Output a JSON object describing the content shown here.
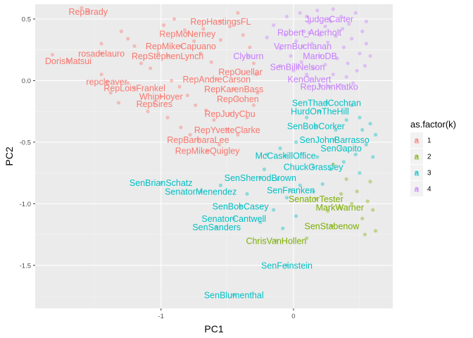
{
  "chart_data": {
    "type": "scatter",
    "xlabel": "PC1",
    "ylabel": "PC2",
    "xlim": [
      -1.95,
      0.75
    ],
    "ylim": [
      -1.85,
      0.62
    ],
    "x_ticks": [
      -1,
      0
    ],
    "y_ticks": [
      -1.5,
      -1.0,
      -0.5,
      0.0,
      0.5
    ],
    "x_tick_labels": [
      "-1",
      "0"
    ],
    "y_tick_labels": [
      "-1.5",
      "-1.0",
      "-0.5",
      "0.0",
      "0.5"
    ],
    "grid": true,
    "legend": {
      "title": "as.factor(k)",
      "placement": "right",
      "entries": [
        {
          "key": "1",
          "letter": "a",
          "color": "#F8766D"
        },
        {
          "key": "2",
          "letter": "a",
          "color": "#7CAE00"
        },
        {
          "key": "3",
          "letter": "a",
          "color": "#00BFC4"
        },
        {
          "key": "4",
          "letter": "a",
          "color": "#C77CFF"
        }
      ]
    },
    "colors": {
      "1": "#F8766D",
      "2": "#7CAE00",
      "3": "#00BFC4",
      "4": "#C77CFF"
    },
    "labeled_points": [
      {
        "label": "RepBrady",
        "x": -1.55,
        "y": 0.56,
        "k": "1"
      },
      {
        "label": "RepHastingsFL",
        "x": -0.55,
        "y": 0.48,
        "k": "1"
      },
      {
        "label": "RepMcNerney",
        "x": -0.8,
        "y": 0.38,
        "k": "1"
      },
      {
        "label": "RepMikeCapuano",
        "x": -0.85,
        "y": 0.28,
        "k": "1"
      },
      {
        "label": "rosadelauro",
        "x": -1.45,
        "y": 0.22,
        "k": "1"
      },
      {
        "label": "RepStephenLynch",
        "x": -0.95,
        "y": 0.2,
        "k": "1"
      },
      {
        "label": "DorisMatsui",
        "x": -1.7,
        "y": 0.16,
        "k": "1"
      },
      {
        "label": "RepCuellar",
        "x": -0.4,
        "y": 0.07,
        "k": "1"
      },
      {
        "label": "RepAndreCarson",
        "x": -0.58,
        "y": 0.01,
        "k": "1"
      },
      {
        "label": "repcleaver",
        "x": -1.41,
        "y": -0.01,
        "k": "1"
      },
      {
        "label": "RepLoisFrankel",
        "x": -1.2,
        "y": -0.06,
        "k": "1"
      },
      {
        "label": "RepKarenBass",
        "x": -0.45,
        "y": -0.07,
        "k": "1"
      },
      {
        "label": "WhipHoyer",
        "x": -1.0,
        "y": -0.13,
        "k": "1"
      },
      {
        "label": "RepCohen",
        "x": -0.42,
        "y": -0.15,
        "k": "1"
      },
      {
        "label": "RepSires",
        "x": -1.05,
        "y": -0.19,
        "k": "1"
      },
      {
        "label": "RepJudyChu",
        "x": -0.48,
        "y": -0.27,
        "k": "1"
      },
      {
        "label": "RepYvetteClarke",
        "x": -0.5,
        "y": -0.4,
        "k": "1"
      },
      {
        "label": "RepBarbaraLee",
        "x": -0.72,
        "y": -0.48,
        "k": "1"
      },
      {
        "label": "RepMikeQuigley",
        "x": -0.65,
        "y": -0.57,
        "k": "1"
      },
      {
        "label": "JudgeCarter",
        "x": 0.27,
        "y": 0.5,
        "k": "4"
      },
      {
        "label": "Robert_Aderholt",
        "x": 0.12,
        "y": 0.39,
        "k": "4"
      },
      {
        "label": "VernBuchanan",
        "x": 0.07,
        "y": 0.28,
        "k": "4"
      },
      {
        "label": "MarioDB",
        "x": 0.2,
        "y": 0.2,
        "k": "4"
      },
      {
        "label": "Clyburn",
        "x": -0.34,
        "y": 0.2,
        "k": "4"
      },
      {
        "label": "SenBillNelson",
        "x": 0.03,
        "y": 0.11,
        "k": "4"
      },
      {
        "label": "KenCalvert",
        "x": 0.12,
        "y": 0.01,
        "k": "4"
      },
      {
        "label": "RepJohnKatko",
        "x": 0.27,
        "y": -0.05,
        "k": "4"
      },
      {
        "label": "SenThadCochran",
        "x": 0.25,
        "y": -0.18,
        "k": "3"
      },
      {
        "label": "HurdOnTheHill",
        "x": 0.2,
        "y": -0.25,
        "k": "3"
      },
      {
        "label": "SenBobCorker",
        "x": 0.17,
        "y": -0.37,
        "k": "3"
      },
      {
        "label": "SenJohnBarrasso",
        "x": 0.31,
        "y": -0.48,
        "k": "3"
      },
      {
        "label": "SenCapito",
        "x": 0.36,
        "y": -0.55,
        "k": "3"
      },
      {
        "label": "McCaskillOffice",
        "x": -0.06,
        "y": -0.61,
        "k": "3"
      },
      {
        "label": "ChuckGrassley",
        "x": 0.15,
        "y": -0.7,
        "k": "3"
      },
      {
        "label": "SenBrianSchatz",
        "x": -1.0,
        "y": -0.83,
        "k": "3"
      },
      {
        "label": "SenSherrodBrown",
        "x": -0.25,
        "y": -0.79,
        "k": "3"
      },
      {
        "label": "SenatorMenendez",
        "x": -0.7,
        "y": -0.9,
        "k": "3"
      },
      {
        "label": "SenFranken",
        "x": -0.02,
        "y": -0.89,
        "k": "3"
      },
      {
        "label": "SenatorTester",
        "x": 0.17,
        "y": -0.96,
        "k": "2"
      },
      {
        "label": "SenBobCasey",
        "x": -0.4,
        "y": -1.02,
        "k": "3"
      },
      {
        "label": "MarkWarner",
        "x": 0.35,
        "y": -1.03,
        "k": "2"
      },
      {
        "label": "SenatorCantwell",
        "x": -0.45,
        "y": -1.12,
        "k": "3"
      },
      {
        "label": "SenSanders",
        "x": -0.58,
        "y": -1.19,
        "k": "3"
      },
      {
        "label": "SenStabenow",
        "x": 0.29,
        "y": -1.18,
        "k": "2"
      },
      {
        "label": "ChrisVanHollen",
        "x": -0.13,
        "y": -1.3,
        "k": "2"
      },
      {
        "label": "SenFeinstein",
        "x": -0.05,
        "y": -1.5,
        "k": "3"
      },
      {
        "label": "SenBlumenthal",
        "x": -0.45,
        "y": -1.74,
        "k": "3"
      }
    ],
    "extra_points": [
      {
        "x": -1.6,
        "y": 0.59,
        "k": "1"
      },
      {
        "x": -1.82,
        "y": 0.21,
        "k": "1"
      },
      {
        "x": -1.45,
        "y": 0.05,
        "k": "1"
      },
      {
        "x": -1.45,
        "y": 0.3,
        "k": "1"
      },
      {
        "x": -1.3,
        "y": 0.4,
        "k": "1"
      },
      {
        "x": -1.25,
        "y": 0.34,
        "k": "1"
      },
      {
        "x": -1.2,
        "y": 0.28,
        "k": "1"
      },
      {
        "x": -1.38,
        "y": -0.1,
        "k": "1"
      },
      {
        "x": -1.32,
        "y": -0.18,
        "k": "1"
      },
      {
        "x": -1.15,
        "y": 0.14,
        "k": "1"
      },
      {
        "x": -1.08,
        "y": 0.1,
        "k": "1"
      },
      {
        "x": -0.98,
        "y": 0.45,
        "k": "1"
      },
      {
        "x": -0.9,
        "y": 0.5,
        "k": "1"
      },
      {
        "x": -0.82,
        "y": 0.41,
        "k": "1"
      },
      {
        "x": -0.75,
        "y": 0.32,
        "k": "1"
      },
      {
        "x": -0.7,
        "y": 0.22,
        "k": "1"
      },
      {
        "x": -0.62,
        "y": 0.15,
        "k": "1"
      },
      {
        "x": -0.55,
        "y": 0.33,
        "k": "1"
      },
      {
        "x": -0.48,
        "y": 0.44,
        "k": "1"
      },
      {
        "x": -0.42,
        "y": 0.55,
        "k": "1"
      },
      {
        "x": -0.38,
        "y": 0.37,
        "k": "1"
      },
      {
        "x": -0.33,
        "y": 0.27,
        "k": "1"
      },
      {
        "x": -0.3,
        "y": 0.14,
        "k": "1"
      },
      {
        "x": -0.28,
        "y": 0.05,
        "k": "1"
      },
      {
        "x": -0.92,
        "y": 0.0,
        "k": "1"
      },
      {
        "x": -0.86,
        "y": -0.05,
        "k": "1"
      },
      {
        "x": -0.8,
        "y": -0.12,
        "k": "1"
      },
      {
        "x": -0.74,
        "y": -0.2,
        "k": "1"
      },
      {
        "x": -0.66,
        "y": -0.24,
        "k": "1"
      },
      {
        "x": -0.6,
        "y": -0.32,
        "k": "1"
      },
      {
        "x": -0.85,
        "y": -0.38,
        "k": "1"
      },
      {
        "x": -0.78,
        "y": -0.44,
        "k": "1"
      },
      {
        "x": -0.56,
        "y": -0.52,
        "k": "1"
      },
      {
        "x": -0.42,
        "y": -0.44,
        "k": "1"
      },
      {
        "x": -0.35,
        "y": -0.3,
        "k": "1"
      },
      {
        "x": -0.3,
        "y": -0.2,
        "k": "1"
      },
      {
        "x": -0.27,
        "y": -0.1,
        "k": "1"
      },
      {
        "x": -1.25,
        "y": -0.02,
        "k": "1"
      },
      {
        "x": -1.1,
        "y": -0.25,
        "k": "1"
      },
      {
        "x": -0.95,
        "y": -0.3,
        "k": "1"
      },
      {
        "x": -0.68,
        "y": 0.42,
        "k": "1"
      },
      {
        "x": -1.02,
        "y": 0.22,
        "k": "1"
      },
      {
        "x": -0.15,
        "y": 0.45,
        "k": "4"
      },
      {
        "x": -0.05,
        "y": 0.52,
        "k": "4"
      },
      {
        "x": 0.05,
        "y": 0.55,
        "k": "4"
      },
      {
        "x": 0.12,
        "y": 0.47,
        "k": "4"
      },
      {
        "x": 0.18,
        "y": 0.57,
        "k": "4"
      },
      {
        "x": 0.24,
        "y": 0.44,
        "k": "4"
      },
      {
        "x": 0.3,
        "y": 0.58,
        "k": "4"
      },
      {
        "x": 0.36,
        "y": 0.52,
        "k": "4"
      },
      {
        "x": 0.42,
        "y": 0.46,
        "k": "4"
      },
      {
        "x": 0.47,
        "y": 0.55,
        "k": "4"
      },
      {
        "x": 0.52,
        "y": 0.4,
        "k": "4"
      },
      {
        "x": 0.55,
        "y": 0.3,
        "k": "4"
      },
      {
        "x": 0.5,
        "y": 0.22,
        "k": "4"
      },
      {
        "x": 0.44,
        "y": 0.34,
        "k": "4"
      },
      {
        "x": 0.38,
        "y": 0.27,
        "k": "4"
      },
      {
        "x": 0.32,
        "y": 0.36,
        "k": "4"
      },
      {
        "x": 0.26,
        "y": 0.31,
        "k": "4"
      },
      {
        "x": 0.2,
        "y": 0.37,
        "k": "4"
      },
      {
        "x": 0.14,
        "y": 0.3,
        "k": "4"
      },
      {
        "x": 0.08,
        "y": 0.4,
        "k": "4"
      },
      {
        "x": 0.02,
        "y": 0.32,
        "k": "4"
      },
      {
        "x": -0.06,
        "y": 0.37,
        "k": "4"
      },
      {
        "x": -0.1,
        "y": 0.26,
        "k": "4"
      },
      {
        "x": -0.02,
        "y": 0.2,
        "k": "4"
      },
      {
        "x": 0.06,
        "y": 0.15,
        "k": "4"
      },
      {
        "x": 0.15,
        "y": 0.1,
        "k": "4"
      },
      {
        "x": 0.24,
        "y": 0.13,
        "k": "4"
      },
      {
        "x": 0.33,
        "y": 0.18,
        "k": "4"
      },
      {
        "x": 0.41,
        "y": 0.14,
        "k": "4"
      },
      {
        "x": 0.48,
        "y": 0.08,
        "k": "4"
      },
      {
        "x": 0.54,
        "y": 0.12,
        "k": "4"
      },
      {
        "x": 0.4,
        "y": 0.03,
        "k": "4"
      },
      {
        "x": 0.3,
        "y": 0.05,
        "k": "4"
      },
      {
        "x": 0.2,
        "y": -0.04,
        "k": "4"
      },
      {
        "x": 0.1,
        "y": 0.05,
        "k": "4"
      },
      {
        "x": 0.0,
        "y": 0.08,
        "k": "4"
      },
      {
        "x": -0.1,
        "y": 0.12,
        "k": "4"
      },
      {
        "x": 0.36,
        "y": -0.04,
        "k": "4"
      },
      {
        "x": 0.45,
        "y": -0.02,
        "k": "4"
      },
      {
        "x": 0.28,
        "y": 0.48,
        "k": "4"
      },
      {
        "x": 0.37,
        "y": 0.42,
        "k": "4"
      },
      {
        "x": 0.1,
        "y": 0.52,
        "k": "4"
      },
      {
        "x": -0.2,
        "y": 0.35,
        "k": "4"
      },
      {
        "x": 0.55,
        "y": 0.48,
        "k": "4"
      },
      {
        "x": 0.58,
        "y": 0.2,
        "k": "4"
      },
      {
        "x": 0.44,
        "y": -0.2,
        "k": "3"
      },
      {
        "x": 0.5,
        "y": -0.3,
        "k": "3"
      },
      {
        "x": 0.58,
        "y": -0.35,
        "k": "3"
      },
      {
        "x": 0.62,
        "y": -0.44,
        "k": "3"
      },
      {
        "x": 0.55,
        "y": -0.52,
        "k": "3"
      },
      {
        "x": 0.47,
        "y": -0.6,
        "k": "3"
      },
      {
        "x": 0.38,
        "y": -0.66,
        "k": "3"
      },
      {
        "x": 0.28,
        "y": -0.72,
        "k": "3"
      },
      {
        "x": 0.6,
        "y": -0.62,
        "k": "3"
      },
      {
        "x": 0.52,
        "y": -0.4,
        "k": "3"
      },
      {
        "x": 0.4,
        "y": -0.32,
        "k": "3"
      },
      {
        "x": 0.32,
        "y": -0.4,
        "k": "3"
      },
      {
        "x": 0.1,
        "y": -0.3,
        "k": "3"
      },
      {
        "x": 0.02,
        "y": -0.5,
        "k": "3"
      },
      {
        "x": -0.1,
        "y": -0.55,
        "k": "3"
      },
      {
        "x": -0.2,
        "y": -0.6,
        "k": "3"
      },
      {
        "x": -0.22,
        "y": -0.72,
        "k": "3"
      },
      {
        "x": -0.12,
        "y": -0.8,
        "k": "3"
      },
      {
        "x": -0.05,
        "y": -0.95,
        "k": "3"
      },
      {
        "x": -0.15,
        "y": -1.05,
        "k": "3"
      },
      {
        "x": -0.25,
        "y": -1.15,
        "k": "3"
      },
      {
        "x": -0.08,
        "y": -1.2,
        "k": "3"
      },
      {
        "x": 0.02,
        "y": -1.1,
        "k": "3"
      },
      {
        "x": 0.05,
        "y": -0.85,
        "k": "3"
      },
      {
        "x": 0.15,
        "y": -0.9,
        "k": "3"
      },
      {
        "x": 0.22,
        "y": -0.84,
        "k": "3"
      },
      {
        "x": -0.35,
        "y": -0.92,
        "k": "3"
      },
      {
        "x": -0.55,
        "y": -0.85,
        "k": "3"
      },
      {
        "x": 0.18,
        "y": -0.62,
        "k": "3"
      },
      {
        "x": 0.5,
        "y": -0.75,
        "k": "3"
      },
      {
        "x": 0.4,
        "y": -0.8,
        "k": "2"
      },
      {
        "x": 0.48,
        "y": -0.9,
        "k": "2"
      },
      {
        "x": 0.56,
        "y": -0.98,
        "k": "2"
      },
      {
        "x": 0.6,
        "y": -1.05,
        "k": "2"
      },
      {
        "x": 0.52,
        "y": -1.12,
        "k": "2"
      },
      {
        "x": 0.44,
        "y": -1.0,
        "k": "2"
      },
      {
        "x": 0.36,
        "y": -0.92,
        "k": "2"
      },
      {
        "x": 0.26,
        "y": -1.06,
        "k": "2"
      },
      {
        "x": 0.62,
        "y": -1.22,
        "k": "2"
      },
      {
        "x": 0.54,
        "y": -1.25,
        "k": "2"
      },
      {
        "x": 0.1,
        "y": -1.28,
        "k": "2"
      },
      {
        "x": 0.3,
        "y": -0.68,
        "k": "2"
      },
      {
        "x": 0.58,
        "y": -0.82,
        "k": "2"
      }
    ]
  }
}
